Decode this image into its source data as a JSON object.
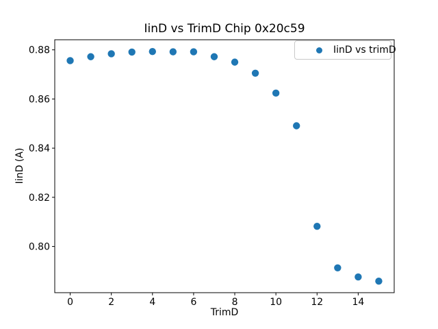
{
  "chart_data": {
    "type": "scatter",
    "title": "IinD vs TrimD Chip 0x20c59",
    "xlabel": "TrimD",
    "ylabel": "IinD (A)",
    "legend": {
      "label": "IinD vs trimD",
      "position": "upper right",
      "marker": "circle"
    },
    "series": [
      {
        "name": "IinD vs trimD",
        "x": [
          0,
          1,
          2,
          3,
          4,
          5,
          6,
          7,
          8,
          9,
          10,
          11,
          12,
          13,
          14,
          15
        ],
        "y": [
          0.8756,
          0.8772,
          0.8784,
          0.8791,
          0.8793,
          0.8792,
          0.8792,
          0.8772,
          0.875,
          0.8705,
          0.8624,
          0.8491,
          0.8082,
          0.7913,
          0.7876,
          0.7859
        ]
      }
    ],
    "xlim": [
      -0.75,
      15.75
    ],
    "ylim": [
      0.7812,
      0.8841
    ],
    "x_ticks": [
      0,
      2,
      4,
      6,
      8,
      10,
      12,
      14
    ],
    "x_tick_labels": [
      "0",
      "2",
      "4",
      "6",
      "8",
      "10",
      "12",
      "14"
    ],
    "y_ticks": [
      0.8,
      0.82,
      0.84,
      0.86,
      0.88
    ],
    "y_tick_labels": [
      "0.80",
      "0.82",
      "0.84",
      "0.86",
      "0.88"
    ],
    "grid": false,
    "marker_color": "#1f77b4",
    "spine_color": "#000000",
    "background_color": "#ffffff"
  }
}
